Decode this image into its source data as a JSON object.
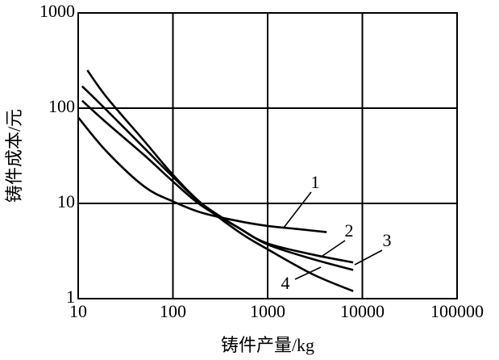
{
  "chart_data": {
    "type": "line",
    "xlabel": "铸件产量/kg",
    "ylabel": "铸件成本/元",
    "xscale": "log",
    "yscale": "log",
    "grid": true,
    "color": "#000000",
    "xlim": [
      10,
      100000
    ],
    "ylim": [
      1,
      1000
    ],
    "xticks": [
      10,
      100,
      1000,
      10000,
      100000
    ],
    "yticks": [
      1,
      10,
      100,
      1000
    ],
    "series": [
      {
        "name": "1",
        "color": "#000000",
        "x": [
          10,
          20,
          50,
          100,
          200,
          500,
          1000,
          2000,
          4200
        ],
        "values": [
          80,
          35,
          15,
          10.5,
          8,
          6.5,
          5.8,
          5.4,
          5
        ]
      },
      {
        "name": "2",
        "color": "#000000",
        "x": [
          11,
          20,
          50,
          100,
          200,
          500,
          1000,
          3000,
          8000
        ],
        "values": [
          170,
          95,
          38,
          19,
          10,
          5.5,
          3.8,
          2.9,
          2.4
        ]
      },
      {
        "name": "3",
        "color": "#000000",
        "x": [
          11,
          20,
          50,
          100,
          200,
          500,
          1000,
          3000,
          8000
        ],
        "values": [
          120,
          70,
          32,
          17,
          9.5,
          5.5,
          3.7,
          2.6,
          2.0
        ]
      },
      {
        "name": "4",
        "color": "#000000",
        "x": [
          12.5,
          20,
          50,
          100,
          200,
          500,
          1000,
          3000,
          8000
        ],
        "values": [
          250,
          130,
          45,
          20,
          10,
          5,
          3.3,
          1.8,
          1.2
        ]
      }
    ]
  }
}
